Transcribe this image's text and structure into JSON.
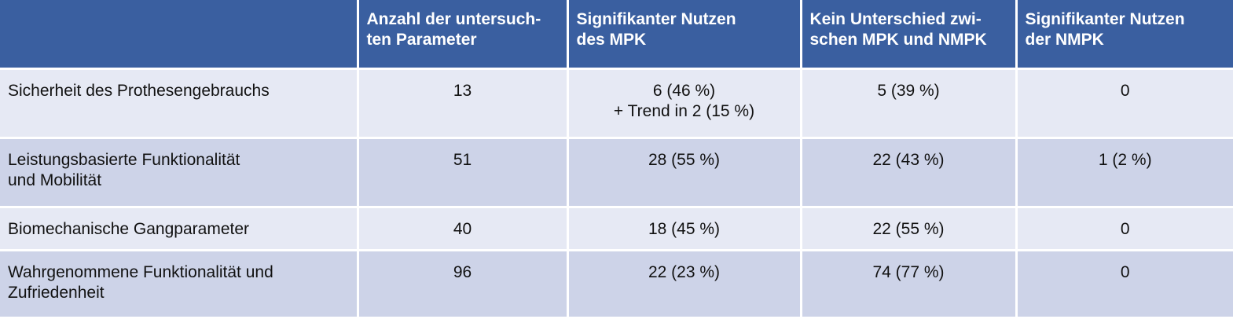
{
  "header": [
    "",
    "Anzahl der untersuch-\nten Parameter",
    "Signifikanter Nutzen\ndes MPK",
    "Kein Unterschied zwi-\nschen MPK und NMPK",
    "Signifikanter Nutzen\nder NMPK"
  ],
  "rows": [
    {
      "label": [
        "Sicherheit des Prothesengebrauchs"
      ],
      "count": "13",
      "mpk": [
        "6 (46 %)",
        "+ Trend in 2 (15 %)"
      ],
      "none": "5 (39 %)",
      "nmpk": "0"
    },
    {
      "label": [
        "Leistungsbasierte Funktionalität",
        "und Mobilität"
      ],
      "count": "51",
      "mpk": [
        "28 (55 %)"
      ],
      "none": "22 (43 %)",
      "nmpk": "1 (2 %)"
    },
    {
      "label": [
        "Biomechanische Gangparameter"
      ],
      "count": "40",
      "mpk": [
        "18 (45 %)"
      ],
      "none": "22 (55 %)",
      "nmpk": "0"
    },
    {
      "label": [
        "Wahrgenommene Funktionalität und",
        "Zufriedenheit"
      ],
      "count": "96",
      "mpk": [
        "22 (23 %)"
      ],
      "none": "74 (77 %)",
      "nmpk": "0"
    }
  ],
  "colors": {
    "header": "#3a5fa0",
    "row_light": "#e6e9f4",
    "row_dark": "#cdd3e8"
  }
}
